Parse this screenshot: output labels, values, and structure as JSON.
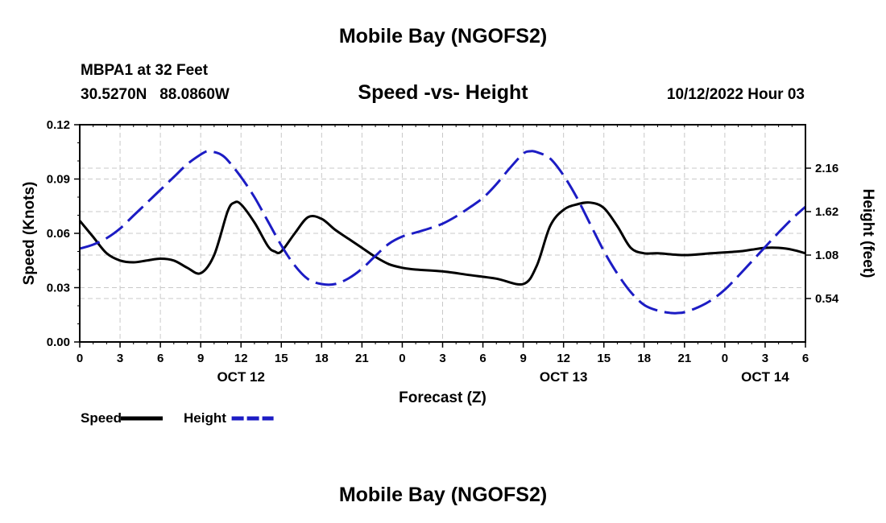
{
  "chart_data": {
    "type": "line",
    "title": "Mobile Bay (NGOFS2)",
    "footer_title": "Mobile Bay (NGOFS2)",
    "station": "MBPA1 at 32 Feet",
    "coordinates": "30.5270N   88.0860W",
    "subtitle": "Speed -vs- Height",
    "datetime": "10/12/2022 Hour 03",
    "xlabel": "Forecast (Z)",
    "ylabel_left": "Speed (Knots)",
    "ylabel_right": "Height (feet)",
    "x_range_hours": [
      0,
      54
    ],
    "x_ticks": [
      {
        "h": 0,
        "label": "0"
      },
      {
        "h": 3,
        "label": "3"
      },
      {
        "h": 6,
        "label": "6"
      },
      {
        "h": 9,
        "label": "9"
      },
      {
        "h": 12,
        "label": "12"
      },
      {
        "h": 15,
        "label": "15"
      },
      {
        "h": 18,
        "label": "18"
      },
      {
        "h": 21,
        "label": "21"
      },
      {
        "h": 24,
        "label": "0"
      },
      {
        "h": 27,
        "label": "3"
      },
      {
        "h": 30,
        "label": "6"
      },
      {
        "h": 33,
        "label": "9"
      },
      {
        "h": 36,
        "label": "12"
      },
      {
        "h": 39,
        "label": "15"
      },
      {
        "h": 42,
        "label": "18"
      },
      {
        "h": 45,
        "label": "21"
      },
      {
        "h": 48,
        "label": "0"
      },
      {
        "h": 51,
        "label": "3"
      },
      {
        "h": 54,
        "label": "6"
      }
    ],
    "date_labels": [
      {
        "h": 12,
        "label": "OCT 12"
      },
      {
        "h": 36,
        "label": "OCT 13"
      },
      {
        "h": 51,
        "label": "OCT 14"
      }
    ],
    "y_left_range": [
      0,
      0.12
    ],
    "y_left_ticks": [
      "0.00",
      "0.03",
      "0.06",
      "0.09",
      "0.12"
    ],
    "y_right_range": [
      0.0,
      2.7
    ],
    "y_right_ticks": [
      "0.54",
      "1.08",
      "1.62",
      "2.16"
    ],
    "series": [
      {
        "name": "Speed",
        "axis": "left",
        "color": "#000000",
        "style": "solid",
        "x": [
          0,
          1,
          2,
          3,
          4,
          5,
          6,
          7,
          8,
          9,
          10,
          11,
          11.5,
          12,
          13,
          14,
          14.5,
          15,
          16,
          17,
          18,
          19,
          20,
          21,
          22,
          23,
          24,
          25,
          27,
          29,
          31,
          33,
          34,
          35,
          36,
          37,
          38,
          39,
          40,
          41,
          42,
          43,
          45,
          47,
          49,
          50,
          51,
          52,
          53,
          54
        ],
        "values": [
          0.067,
          0.058,
          0.049,
          0.045,
          0.044,
          0.045,
          0.046,
          0.045,
          0.041,
          0.038,
          0.048,
          0.072,
          0.077,
          0.076,
          0.066,
          0.053,
          0.05,
          0.05,
          0.06,
          0.069,
          0.068,
          0.062,
          0.057,
          0.052,
          0.047,
          0.043,
          0.041,
          0.04,
          0.039,
          0.037,
          0.035,
          0.032,
          0.042,
          0.064,
          0.073,
          0.076,
          0.077,
          0.074,
          0.064,
          0.052,
          0.049,
          0.049,
          0.048,
          0.049,
          0.05,
          0.051,
          0.052,
          0.052,
          0.051,
          0.049
        ]
      },
      {
        "name": "Height",
        "axis": "right",
        "color": "#1c1cc4",
        "style": "dashed",
        "x": [
          0,
          1,
          2,
          3,
          4,
          5,
          6,
          7,
          8,
          9,
          9.5,
          10,
          10.5,
          11,
          12,
          13,
          14,
          15,
          16,
          17,
          18,
          19,
          20,
          21,
          22,
          23,
          24,
          25,
          26,
          27,
          28,
          29,
          30,
          31,
          32,
          33,
          33.5,
          34,
          35,
          36,
          37,
          38,
          39,
          40,
          41,
          42,
          43,
          44,
          44.5,
          45,
          46,
          47,
          48,
          49,
          50,
          51,
          52,
          53,
          54
        ],
        "values": [
          1.16,
          1.21,
          1.29,
          1.41,
          1.57,
          1.73,
          1.89,
          2.05,
          2.21,
          2.33,
          2.37,
          2.36,
          2.33,
          2.26,
          2.05,
          1.8,
          1.5,
          1.2,
          0.95,
          0.78,
          0.72,
          0.72,
          0.79,
          0.91,
          1.07,
          1.22,
          1.31,
          1.36,
          1.41,
          1.47,
          1.56,
          1.67,
          1.79,
          1.96,
          2.16,
          2.34,
          2.37,
          2.36,
          2.28,
          2.07,
          1.79,
          1.46,
          1.13,
          0.85,
          0.62,
          0.46,
          0.39,
          0.36,
          0.36,
          0.37,
          0.43,
          0.52,
          0.65,
          0.82,
          1.0,
          1.18,
          1.36,
          1.53,
          1.68
        ]
      }
    ],
    "legend": [
      {
        "label": "Speed",
        "color": "#000000",
        "style": "solid"
      },
      {
        "label": "Height",
        "color": "#1c1cc4",
        "style": "dashed"
      }
    ]
  }
}
